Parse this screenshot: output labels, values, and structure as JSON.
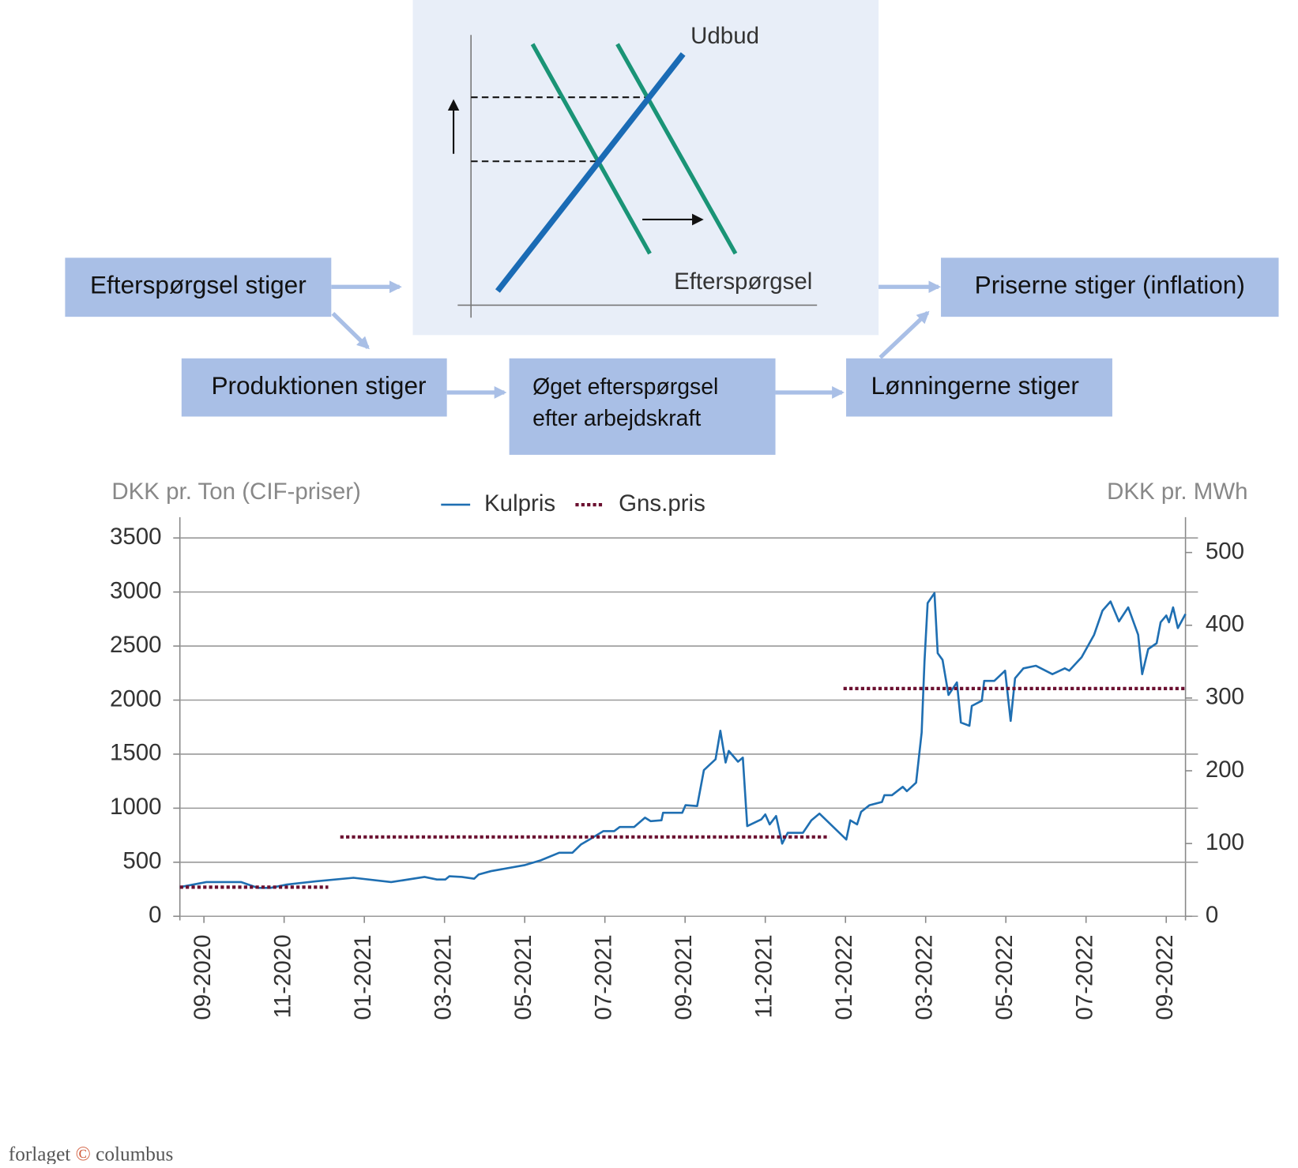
{
  "diagram": {
    "supply_label": "Udbud",
    "demand_label": "Efterspørgsel",
    "boxes": {
      "demand_rises": "Efterspørgsel stiger",
      "production_rises": "Produktionen stiger",
      "labour_demand": [
        "Øget efterspørgsel",
        "efter arbejdskraft"
      ],
      "wages_rise": "Lønningerne stiger",
      "prices_rise": "Priserne stiger (inflation)"
    }
  },
  "chart_data": {
    "type": "line",
    "y_label": "DKK pr. Ton (CIF-priser)",
    "y2_label": "DKK pr. MWh",
    "xlim": [
      -0.6,
      24.48
    ],
    "xticks": [
      {
        "value": 0,
        "label": "09-2020"
      },
      {
        "value": 2,
        "label": "11-2020"
      },
      {
        "value": 4,
        "label": "01-2021"
      },
      {
        "value": 6,
        "label": "03-2021"
      },
      {
        "value": 8,
        "label": "05-2021"
      },
      {
        "value": 10,
        "label": "07-2021"
      },
      {
        "value": 12,
        "label": "09-2021"
      },
      {
        "value": 14,
        "label": "11-2021"
      },
      {
        "value": 16,
        "label": "01-2022"
      },
      {
        "value": 18,
        "label": "03-2022"
      },
      {
        "value": 20,
        "label": "05-2022"
      },
      {
        "value": 22,
        "label": "07-2022"
      },
      {
        "value": 24,
        "label": "09-2022"
      }
    ],
    "ylim": [
      0,
      3500
    ],
    "yticks": [
      0,
      500,
      1000,
      1500,
      2000,
      2500,
      3000,
      3500
    ],
    "y2lim": [
      0,
      520
    ],
    "y2ticks": [
      0,
      100,
      200,
      300,
      400,
      500
    ],
    "grid": true,
    "legend": "top",
    "series": [
      {
        "name": "Kulpris",
        "color": "#1f6fb2",
        "style": "solid",
        "x": [
          -0.6,
          0.06,
          0.93,
          1.35,
          1.66,
          2.07,
          2.8,
          3.73,
          4.67,
          5.5,
          5.81,
          6.02,
          6.12,
          6.43,
          6.74,
          6.85,
          7.16,
          7.99,
          8.4,
          8.86,
          9.19,
          9.4,
          9.65,
          9.96,
          10.23,
          10.37,
          10.73,
          11.0,
          11.14,
          11.41,
          11.45,
          11.93,
          12.01,
          12.3,
          12.47,
          12.76,
          12.88,
          13.01,
          13.09,
          13.32,
          13.44,
          13.55,
          13.9,
          14.0,
          14.11,
          14.27,
          14.42,
          14.56,
          14.94,
          15.15,
          15.35,
          16.02,
          16.12,
          16.29,
          16.39,
          16.6,
          16.91,
          16.97,
          17.16,
          17.43,
          17.53,
          17.76,
          17.9,
          17.97,
          18.05,
          18.22,
          18.3,
          18.42,
          18.57,
          18.78,
          18.88,
          19.09,
          19.15,
          19.4,
          19.46,
          19.71,
          19.98,
          20.12,
          20.23,
          20.44,
          20.75,
          21.16,
          21.47,
          21.58,
          21.89,
          22.2,
          22.41,
          22.61,
          22.82,
          23.05,
          23.3,
          23.4,
          23.55,
          23.76,
          23.86,
          24.0,
          24.07,
          24.17,
          24.29,
          24.48
        ],
        "values": [
          270,
          316,
          316,
          262,
          262,
          294,
          324,
          356,
          316,
          364,
          340,
          340,
          370,
          364,
          348,
          386,
          418,
          472,
          518,
          588,
          588,
          664,
          718,
          788,
          788,
          826,
          826,
          912,
          880,
          888,
          958,
          958,
          1028,
          1020,
          1352,
          1452,
          1716,
          1422,
          1530,
          1430,
          1468,
          834,
          896,
          942,
          850,
          928,
          672,
          772,
          772,
          888,
          950,
          710,
          888,
          850,
          966,
          1028,
          1058,
          1120,
          1120,
          1198,
          1158,
          1236,
          1700,
          2356,
          2898,
          2990,
          2434,
          2372,
          2048,
          2164,
          1792,
          1762,
          1946,
          1994,
          2178,
          2178,
          2272,
          1808,
          2202,
          2294,
          2318,
          2240,
          2294,
          2272,
          2396,
          2604,
          2828,
          2912,
          2728,
          2858,
          2604,
          2240,
          2472,
          2526,
          2720,
          2782,
          2720,
          2858,
          2666,
          2796
        ]
      },
      {
        "name": "Gns.pris",
        "color": "#6b1030",
        "style": "dotted",
        "axis": "y2",
        "x": [
          -0.6,
          3.1,
          3.25,
          3.4,
          15.6,
          15.8,
          15.95,
          24.48
        ],
        "values": [
          40,
          40,
          null,
          109,
          109,
          null,
          313,
          313
        ]
      }
    ]
  },
  "footer": {
    "left": "forlaget",
    "logo": "©",
    "right": "columbus"
  }
}
